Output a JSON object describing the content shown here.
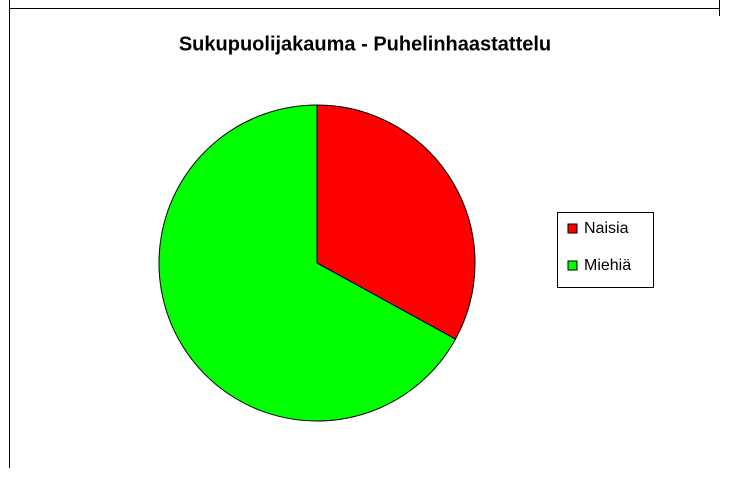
{
  "chart_data": {
    "type": "pie",
    "title": "Sukupuolijakauma - Puhelinhaastattelu",
    "categories": [
      "Naisia",
      "Miehiä"
    ],
    "values": [
      33,
      67
    ],
    "colors": [
      "#ff0000",
      "#00ff00"
    ],
    "legend": "right"
  }
}
